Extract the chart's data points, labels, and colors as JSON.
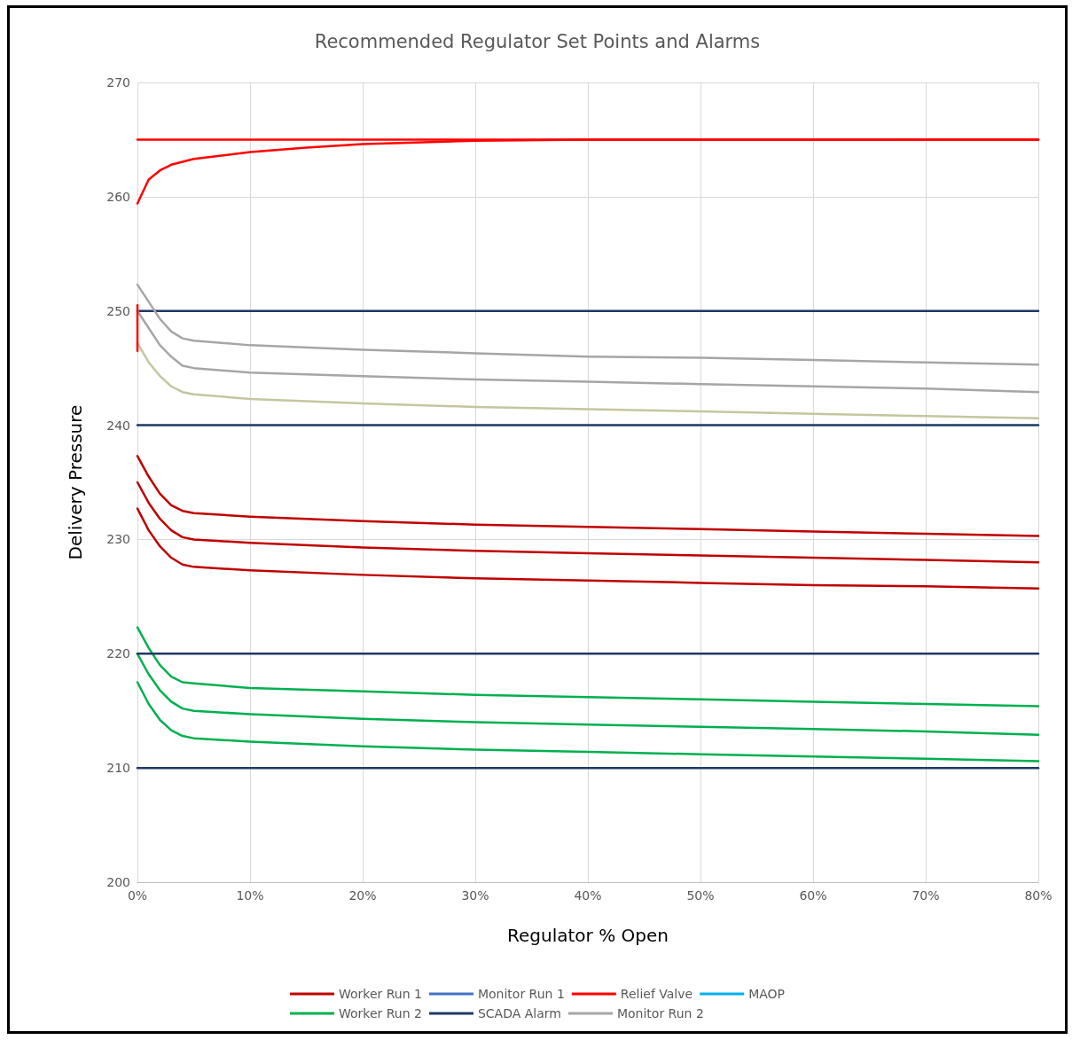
{
  "chart_data": {
    "type": "line",
    "title": "Recommended Regulator Set Points and Alarms",
    "xlabel": "Regulator % Open",
    "ylabel": "Delivery Pressure",
    "x": [
      0,
      1,
      2,
      3,
      4,
      5,
      10,
      20,
      30,
      40,
      50,
      60,
      70,
      80
    ],
    "xlim": [
      0,
      80
    ],
    "xticks": [
      {
        "value": 0,
        "label": "0%"
      },
      {
        "value": 10,
        "label": "10%"
      },
      {
        "value": 20,
        "label": "20%"
      },
      {
        "value": 30,
        "label": "30%"
      },
      {
        "value": 40,
        "label": "40%"
      },
      {
        "value": 50,
        "label": "50%"
      },
      {
        "value": 60,
        "label": "60%"
      },
      {
        "value": 70,
        "label": "70%"
      },
      {
        "value": 80,
        "label": "80%"
      }
    ],
    "ylim": [
      200,
      270
    ],
    "yticks": [
      200,
      210,
      220,
      230,
      240,
      250,
      260,
      270
    ],
    "grid": true,
    "legend": "bottom",
    "marker": "none",
    "line_style": "solid",
    "series": [
      {
        "name": "Worker Run 1",
        "color": "#c00000",
        "values": [
          237.3,
          235.5,
          234,
          233,
          232.5,
          232.3,
          232.0,
          231.6,
          231.3,
          231.1,
          230.9,
          230.7,
          230.5,
          230.3
        ]
      },
      {
        "name": "Monitor Run 1",
        "color": "#4472c4",
        "values": [
          null,
          null,
          null,
          null,
          null,
          null,
          null,
          null,
          null,
          null,
          null,
          null,
          null,
          null
        ]
      },
      {
        "name": "Relief Valve",
        "color": "#ff0000",
        "x": [
          0,
          80
        ],
        "values": [
          265,
          265
        ]
      },
      {
        "name": "MAOP",
        "color": "#00b0f0",
        "values": [
          null,
          null,
          null,
          null,
          null,
          null,
          null,
          null,
          null,
          null,
          null,
          null,
          null,
          null
        ]
      },
      {
        "name": "Worker Run 2",
        "color": "#00b050",
        "values": [
          222.3,
          220.5,
          219,
          218,
          217.5,
          217.4,
          217.0,
          216.7,
          216.4,
          216.2,
          216.0,
          215.8,
          215.6,
          215.4
        ]
      },
      {
        "name": "SCADA Alarm",
        "color": "#1f3864",
        "x": [
          0,
          80
        ],
        "values": [
          250,
          250
        ]
      },
      {
        "name": "Monitor Run 2",
        "color": "#a6a6a6",
        "values": [
          252.3,
          250.8,
          249.3,
          248.2,
          247.6,
          247.4,
          247.0,
          246.6,
          246.3,
          246.0,
          245.9,
          245.7,
          245.5,
          245.3
        ]
      },
      {
        "color": "#c00000",
        "values": [
          235,
          233.2,
          231.8,
          230.8,
          230.2,
          230.0,
          229.7,
          229.3,
          229.0,
          228.8,
          228.6,
          228.4,
          228.2,
          228.0
        ]
      },
      {
        "color": "#c00000",
        "values": [
          232.7,
          230.8,
          229.4,
          228.4,
          227.8,
          227.6,
          227.3,
          226.9,
          226.6,
          226.4,
          226.2,
          226.0,
          225.9,
          225.7
        ]
      },
      {
        "color": "#00b050",
        "values": [
          220,
          218.2,
          216.8,
          215.8,
          215.2,
          215.0,
          214.7,
          214.3,
          214.0,
          213.8,
          213.6,
          213.4,
          213.2,
          212.9
        ]
      },
      {
        "color": "#00b050",
        "values": [
          217.5,
          215.6,
          214.2,
          213.3,
          212.8,
          212.6,
          212.3,
          211.9,
          211.6,
          211.4,
          211.2,
          211.0,
          210.8,
          210.6
        ]
      },
      {
        "color": "#a6a6a6",
        "values": [
          250,
          248.5,
          247,
          246,
          245.2,
          245.0,
          244.6,
          244.3,
          244.0,
          243.8,
          243.6,
          243.4,
          243.2,
          242.9
        ]
      },
      {
        "color": "#c4c6a0",
        "values": [
          247.2,
          245.5,
          244.3,
          243.4,
          242.9,
          242.7,
          242.3,
          241.9,
          241.6,
          241.4,
          241.2,
          241.0,
          240.8,
          240.6
        ]
      },
      {
        "color": "#1f3864",
        "x": [
          0,
          80
        ],
        "values": [
          240,
          240
        ]
      },
      {
        "color": "#1f3864",
        "x": [
          0,
          80
        ],
        "values": [
          220,
          220
        ]
      },
      {
        "color": "#1f3864",
        "x": [
          0,
          80
        ],
        "values": [
          210,
          210
        ]
      },
      {
        "color": "#ff0000",
        "x": [
          0,
          1,
          2,
          3,
          5,
          10,
          15,
          20,
          30,
          40,
          80
        ],
        "values": [
          259.4,
          261.5,
          262.3,
          262.8,
          263.3,
          263.9,
          264.3,
          264.6,
          264.9,
          265,
          265
        ]
      },
      {
        "color": "#ff0000",
        "x": [
          0,
          0
        ],
        "values": [
          250.5,
          246.5
        ]
      }
    ]
  }
}
